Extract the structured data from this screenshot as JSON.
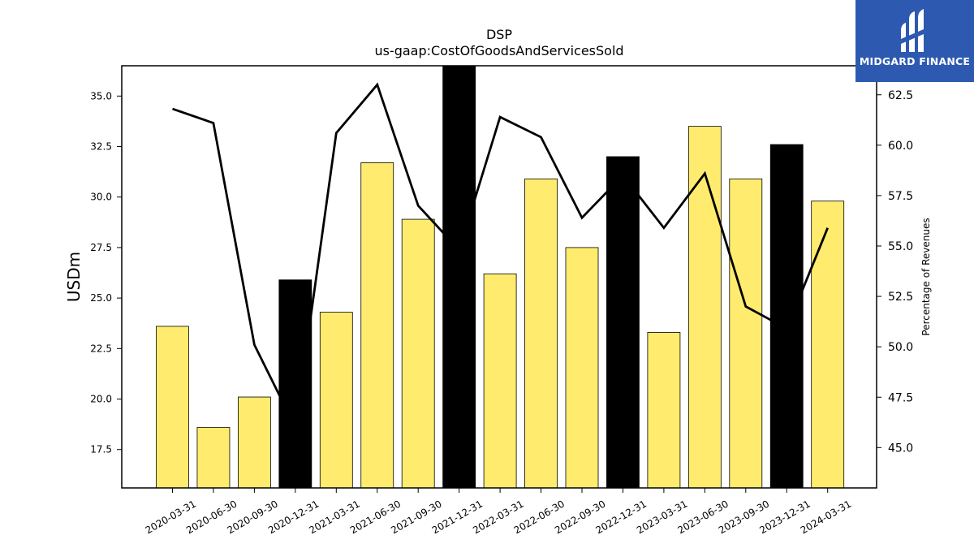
{
  "chart_data": {
    "type": "bar",
    "title": "DSP",
    "subtitle": "us-gaap:CostOfGoodsAndServicesSold",
    "ylabel": "USDm",
    "y2label": "Percentage of Revenues",
    "categories": [
      "2020-03-31",
      "2020-06-30",
      "2020-09-30",
      "2020-12-31",
      "2021-03-31",
      "2021-06-30",
      "2021-09-30",
      "2021-12-31",
      "2022-03-31",
      "2022-06-30",
      "2022-09-30",
      "2022-12-31",
      "2023-03-31",
      "2023-06-30",
      "2023-09-30",
      "2023-12-31",
      "2024-03-31"
    ],
    "series": [
      {
        "type": "bar",
        "values": [
          23.6,
          18.6,
          20.1,
          25.9,
          24.3,
          31.7,
          28.9,
          36.5,
          26.2,
          30.9,
          27.5,
          32.0,
          23.3,
          33.5,
          30.9,
          32.6,
          29.8
        ]
      },
      {
        "type": "line",
        "axis": "right",
        "values": [
          61.8,
          61.1,
          50.1,
          46.0,
          60.6,
          63.0,
          57.0,
          54.8,
          61.4,
          60.4,
          56.4,
          58.5,
          55.9,
          58.6,
          52.0,
          50.9,
          55.9
        ]
      }
    ],
    "bar_colors": [
      "#ffec6e",
      "#ffec6e",
      "#ffec6e",
      "#000000",
      "#ffec6e",
      "#ffec6e",
      "#ffec6e",
      "#000000",
      "#ffec6e",
      "#ffec6e",
      "#ffec6e",
      "#000000",
      "#ffec6e",
      "#ffec6e",
      "#ffec6e",
      "#000000",
      "#ffec6e"
    ],
    "line_color": "#000000",
    "ylim": [
      15.6,
      36.5
    ],
    "y2lim": [
      43.0,
      63.94
    ],
    "yticks": [
      17.5,
      20.0,
      22.5,
      25.0,
      27.5,
      30.0,
      32.5,
      35.0
    ],
    "y2ticks": [
      45.0,
      47.5,
      50.0,
      52.5,
      55.0,
      57.5,
      60.0,
      62.5
    ],
    "grid": false
  },
  "logo": {
    "text": "MIDGARD FINANCE",
    "background": "#2d5ab0"
  }
}
